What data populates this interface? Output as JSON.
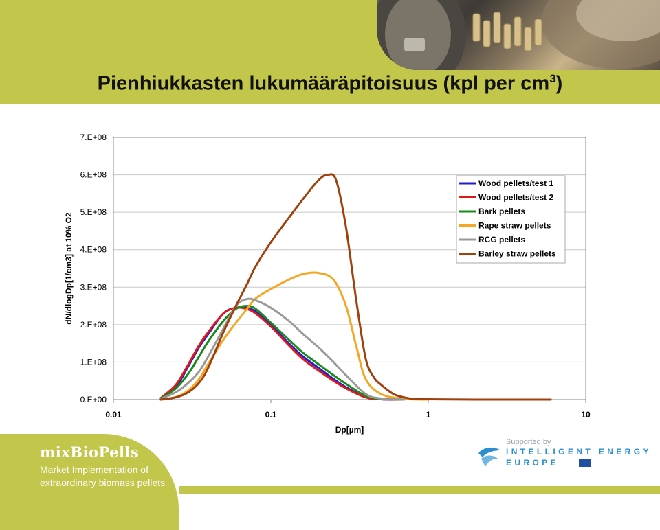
{
  "slide": {
    "title": "Pienhiukkasten lukumääräpitoisuus (kpl per cm",
    "title_sup": "3",
    "title_close": ")",
    "brand": "mixBioPells",
    "tagline_line1": "Market Implementation of",
    "tagline_line2": "extraordinary biomass pellets",
    "supported_by": "Supported by",
    "ie_line1": "INTELLIGENT ENERGY",
    "ie_line2": "EUROPE",
    "accent_color": "#c2c64a"
  },
  "chart_data": {
    "type": "line",
    "title": "",
    "xlabel": "Dp[µm]",
    "ylabel": "dN/dlogDp[1/cm3] at 10% O2",
    "x_scale": "log",
    "xlim": [
      0.01,
      10
    ],
    "ylim": [
      0,
      700000000
    ],
    "x_ticks": [
      "0.01",
      "0.1",
      "1",
      "10"
    ],
    "x_tick_values": [
      0.01,
      0.1,
      1,
      10
    ],
    "y_ticks": [
      "0.E+00",
      "1.E+08",
      "2.E+08",
      "3.E+08",
      "4.E+08",
      "5.E+08",
      "6.E+08",
      "7.E+08"
    ],
    "y_tick_values": [
      0,
      100000000,
      200000000,
      300000000,
      400000000,
      500000000,
      600000000,
      700000000
    ],
    "grid": "horizontal",
    "legend_position": "top-right",
    "series": [
      {
        "name": "Wood pellets/test 1",
        "color": "#1f1fcf",
        "points": [
          [
            0.02,
            3000000.0
          ],
          [
            0.025,
            35000000.0
          ],
          [
            0.03,
            90000000.0
          ],
          [
            0.035,
            140000000.0
          ],
          [
            0.04,
            175000000.0
          ],
          [
            0.05,
            230000000.0
          ],
          [
            0.06,
            245000000.0
          ],
          [
            0.07,
            245000000.0
          ],
          [
            0.08,
            235000000.0
          ],
          [
            0.1,
            200000000.0
          ],
          [
            0.13,
            150000000.0
          ],
          [
            0.16,
            115000000.0
          ],
          [
            0.2,
            85000000.0
          ],
          [
            0.25,
            55000000.0
          ],
          [
            0.3,
            33000000.0
          ],
          [
            0.4,
            7000000.0
          ],
          [
            0.5,
            1000000.0
          ],
          [
            0.7,
            0.0
          ]
        ]
      },
      {
        "name": "Wood pellets/test 2",
        "color": "#e01818",
        "points": [
          [
            0.02,
            4000000.0
          ],
          [
            0.025,
            40000000.0
          ],
          [
            0.03,
            95000000.0
          ],
          [
            0.035,
            145000000.0
          ],
          [
            0.04,
            180000000.0
          ],
          [
            0.05,
            230000000.0
          ],
          [
            0.06,
            245000000.0
          ],
          [
            0.07,
            242000000.0
          ],
          [
            0.08,
            230000000.0
          ],
          [
            0.1,
            195000000.0
          ],
          [
            0.13,
            145000000.0
          ],
          [
            0.16,
            108000000.0
          ],
          [
            0.2,
            78000000.0
          ],
          [
            0.25,
            50000000.0
          ],
          [
            0.3,
            30000000.0
          ],
          [
            0.4,
            6000000.0
          ],
          [
            0.5,
            1000000.0
          ],
          [
            0.7,
            0.0
          ]
        ]
      },
      {
        "name": "Bark pellets",
        "color": "#1a8a1a",
        "points": [
          [
            0.02,
            3000000.0
          ],
          [
            0.025,
            30000000.0
          ],
          [
            0.03,
            70000000.0
          ],
          [
            0.035,
            115000000.0
          ],
          [
            0.04,
            155000000.0
          ],
          [
            0.05,
            210000000.0
          ],
          [
            0.06,
            242000000.0
          ],
          [
            0.07,
            250000000.0
          ],
          [
            0.08,
            242000000.0
          ],
          [
            0.1,
            205000000.0
          ],
          [
            0.13,
            160000000.0
          ],
          [
            0.16,
            125000000.0
          ],
          [
            0.2,
            95000000.0
          ],
          [
            0.25,
            65000000.0
          ],
          [
            0.3,
            42000000.0
          ],
          [
            0.4,
            10000000.0
          ],
          [
            0.5,
            2000000.0
          ],
          [
            0.7,
            0.0
          ]
        ]
      },
      {
        "name": "Rape straw pellets",
        "color": "#f5a623",
        "points": [
          [
            0.02,
            0.0
          ],
          [
            0.025,
            7000000.0
          ],
          [
            0.03,
            25000000.0
          ],
          [
            0.035,
            55000000.0
          ],
          [
            0.04,
            95000000.0
          ],
          [
            0.05,
            160000000.0
          ],
          [
            0.06,
            205000000.0
          ],
          [
            0.07,
            240000000.0
          ],
          [
            0.08,
            270000000.0
          ],
          [
            0.1,
            295000000.0
          ],
          [
            0.13,
            320000000.0
          ],
          [
            0.16,
            335000000.0
          ],
          [
            0.2,
            338000000.0
          ],
          [
            0.25,
            320000000.0
          ],
          [
            0.3,
            250000000.0
          ],
          [
            0.35,
            140000000.0
          ],
          [
            0.4,
            55000000.0
          ],
          [
            0.5,
            15000000.0
          ],
          [
            0.7,
            2000000.0
          ],
          [
            1.0,
            0.0
          ]
        ]
      },
      {
        "name": "RCG pellets",
        "color": "#999999",
        "points": [
          [
            0.02,
            2000000.0
          ],
          [
            0.025,
            20000000.0
          ],
          [
            0.03,
            45000000.0
          ],
          [
            0.035,
            75000000.0
          ],
          [
            0.04,
            115000000.0
          ],
          [
            0.05,
            190000000.0
          ],
          [
            0.06,
            250000000.0
          ],
          [
            0.07,
            268000000.0
          ],
          [
            0.08,
            265000000.0
          ],
          [
            0.1,
            245000000.0
          ],
          [
            0.13,
            210000000.0
          ],
          [
            0.16,
            175000000.0
          ],
          [
            0.2,
            140000000.0
          ],
          [
            0.25,
            100000000.0
          ],
          [
            0.3,
            65000000.0
          ],
          [
            0.4,
            15000000.0
          ],
          [
            0.5,
            3000000.0
          ],
          [
            0.7,
            0.0
          ]
        ]
      },
      {
        "name": "Barley straw pellets",
        "color": "#a0410d",
        "points": [
          [
            0.02,
            0.0
          ],
          [
            0.025,
            6000000.0
          ],
          [
            0.03,
            20000000.0
          ],
          [
            0.035,
            45000000.0
          ],
          [
            0.04,
            85000000.0
          ],
          [
            0.05,
            180000000.0
          ],
          [
            0.06,
            250000000.0
          ],
          [
            0.07,
            305000000.0
          ],
          [
            0.08,
            355000000.0
          ],
          [
            0.1,
            420000000.0
          ],
          [
            0.13,
            485000000.0
          ],
          [
            0.16,
            535000000.0
          ],
          [
            0.2,
            585000000.0
          ],
          [
            0.23,
            600000000.0
          ],
          [
            0.26,
            585000000.0
          ],
          [
            0.3,
            460000000.0
          ],
          [
            0.35,
            260000000.0
          ],
          [
            0.4,
            110000000.0
          ],
          [
            0.45,
            60000000.0
          ],
          [
            0.5,
            40000000.0
          ],
          [
            0.6,
            15000000.0
          ],
          [
            0.7,
            6000000.0
          ],
          [
            0.8,
            2000000.0
          ],
          [
            1.0,
            1000000.0
          ],
          [
            2.0,
            0.0
          ],
          [
            6.0,
            0.0
          ]
        ]
      }
    ]
  }
}
